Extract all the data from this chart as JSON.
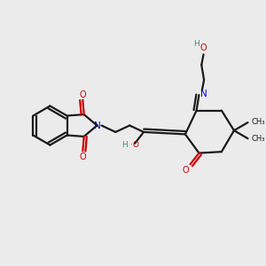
{
  "background_color": "#ebebeb",
  "bond_color": "#1a1a1a",
  "N_color": "#0000cc",
  "O_color": "#cc0000",
  "H_color": "#4a8a8a",
  "figsize": [
    3.0,
    3.0
  ],
  "dpi": 100,
  "xlim": [
    0,
    10
  ],
  "ylim": [
    0,
    10
  ]
}
